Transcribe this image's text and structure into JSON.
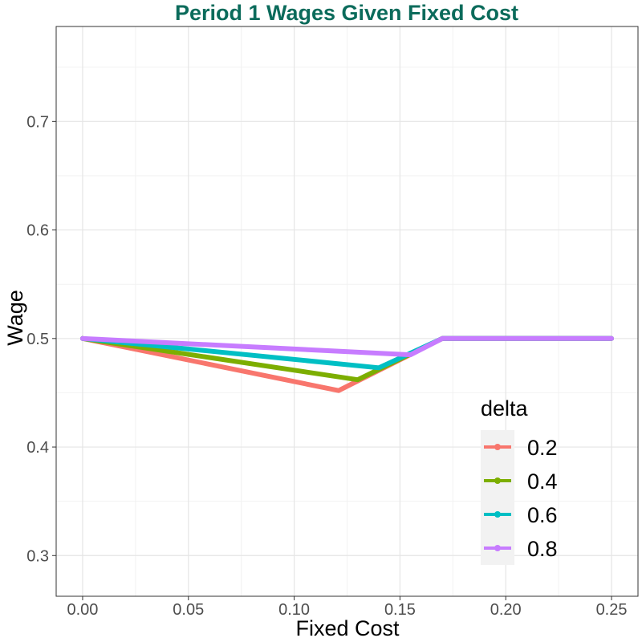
{
  "chart_data": {
    "type": "line",
    "title": "Period 1 Wages Given Fixed Cost",
    "xlabel": "Fixed Cost",
    "ylabel": "Wage",
    "xlim": [
      -0.0125,
      0.2625
    ],
    "ylim": [
      0.2625,
      0.7875
    ],
    "x_ticks": [
      "0.00",
      "0.05",
      "0.10",
      "0.15",
      "0.20",
      "0.25"
    ],
    "x_tick_values": [
      0.0,
      0.05,
      0.1,
      0.15,
      0.2,
      0.25
    ],
    "y_ticks": [
      "0.3",
      "0.4",
      "0.5",
      "0.6",
      "0.7"
    ],
    "y_tick_values": [
      0.3,
      0.4,
      0.5,
      0.6,
      0.7
    ],
    "grid": true,
    "legend": {
      "title": "delta",
      "position": "bottom-right"
    },
    "title_color": "#0b6b5b",
    "series": [
      {
        "name": "0.2",
        "color": "#f8766d",
        "x": [
          0.0,
          0.121,
          0.17,
          0.25
        ],
        "y": [
          0.5,
          0.452,
          0.5,
          0.5
        ]
      },
      {
        "name": "0.4",
        "color": "#7cae00",
        "x": [
          0.0,
          0.13,
          0.17,
          0.25
        ],
        "y": [
          0.5,
          0.462,
          0.5,
          0.5
        ]
      },
      {
        "name": "0.6",
        "color": "#00bfc4",
        "x": [
          0.0,
          0.14,
          0.17,
          0.25
        ],
        "y": [
          0.5,
          0.473,
          0.5,
          0.5
        ]
      },
      {
        "name": "0.8",
        "color": "#c77cff",
        "x": [
          0.0,
          0.155,
          0.17,
          0.25
        ],
        "y": [
          0.5,
          0.485,
          0.5,
          0.5
        ]
      }
    ]
  }
}
